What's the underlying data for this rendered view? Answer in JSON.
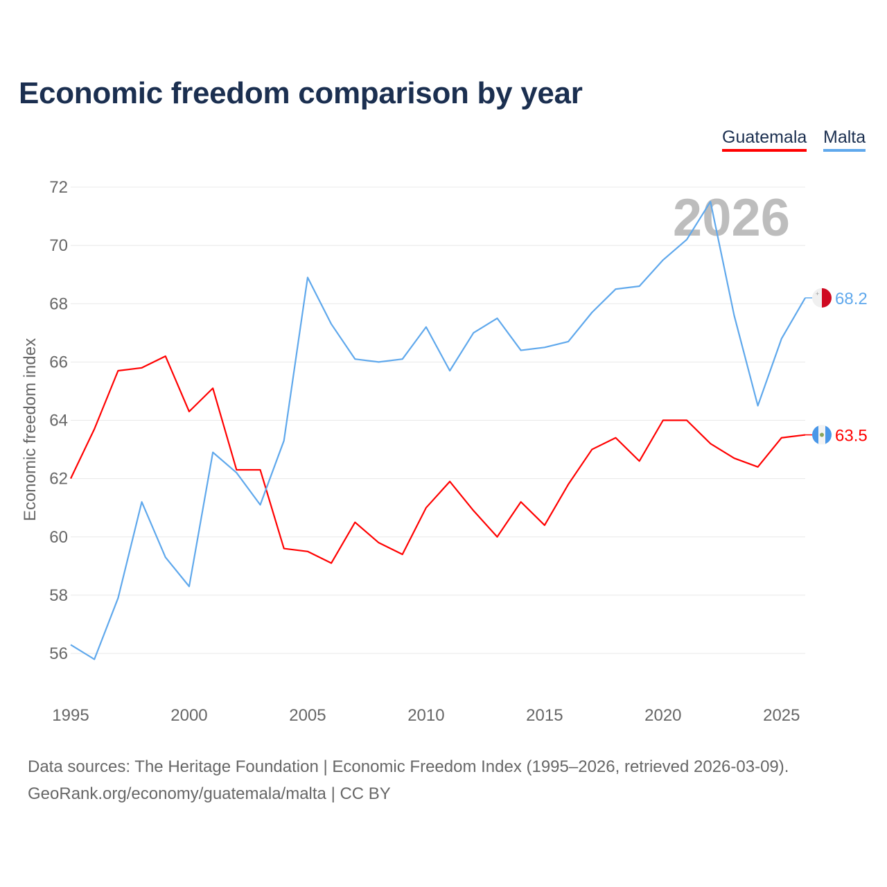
{
  "chart_data": {
    "type": "line",
    "title": "Economic freedom comparison by year",
    "xlabel": "",
    "ylabel": "Economic freedom index",
    "x": [
      1995,
      1996,
      1997,
      1998,
      1999,
      2000,
      2001,
      2002,
      2003,
      2004,
      2005,
      2006,
      2007,
      2008,
      2009,
      2010,
      2011,
      2012,
      2013,
      2014,
      2015,
      2016,
      2017,
      2018,
      2019,
      2020,
      2021,
      2022,
      2023,
      2024,
      2025,
      2026
    ],
    "xlim": [
      1995,
      2026
    ],
    "ylim": [
      56,
      72
    ],
    "xticks": [
      "1995",
      "2000",
      "2005",
      "2010",
      "2015",
      "2020",
      "2025"
    ],
    "yticks": [
      "56",
      "58",
      "60",
      "62",
      "64",
      "66",
      "68",
      "70",
      "72"
    ],
    "grid": true,
    "legend_position": "top-right",
    "year_watermark": "2026",
    "series": [
      {
        "name": "Guatemala",
        "color": "#ff0000",
        "end_label": "63.5",
        "flag": "guatemala-flag",
        "values": [
          62.0,
          63.7,
          65.7,
          65.8,
          66.2,
          64.3,
          65.1,
          62.3,
          62.3,
          59.6,
          59.5,
          59.1,
          60.5,
          59.8,
          59.4,
          61.0,
          61.9,
          60.9,
          60.0,
          61.2,
          60.4,
          61.8,
          63.0,
          63.4,
          62.6,
          64.0,
          64.0,
          63.2,
          62.7,
          62.4,
          63.4,
          63.5
        ]
      },
      {
        "name": "Malta",
        "color": "#5fa8ec",
        "end_label": "68.2",
        "flag": "malta-flag",
        "values": [
          56.3,
          55.8,
          57.9,
          61.2,
          59.3,
          58.3,
          62.9,
          62.2,
          61.1,
          63.3,
          68.9,
          67.3,
          66.1,
          66.0,
          66.1,
          67.2,
          65.7,
          67.0,
          67.5,
          66.4,
          66.5,
          66.7,
          67.7,
          68.5,
          68.6,
          69.5,
          70.2,
          71.5,
          67.6,
          64.5,
          66.8,
          68.2
        ]
      }
    ]
  },
  "footer": {
    "line1": "Data sources: The Heritage Foundation | Economic Freedom Index (1995–2026, retrieved 2026-03-09).",
    "line2": "GeoRank.org/economy/guatemala/malta | CC BY"
  }
}
